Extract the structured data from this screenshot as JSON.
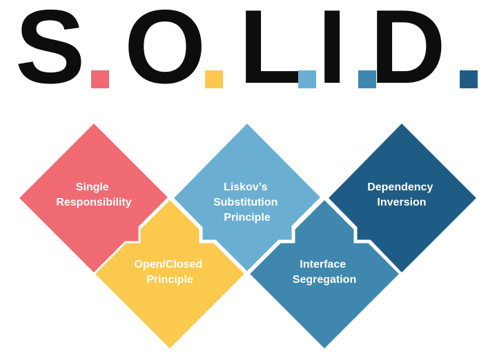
{
  "title": {
    "letters": [
      "S",
      "O",
      "L",
      "I",
      "D"
    ],
    "dot_colors": [
      "#f06a74",
      "#fcc94f",
      "#6aafd2",
      "#3f87ae",
      "#1e5c86"
    ]
  },
  "principles": [
    {
      "lines": [
        "Single",
        "Responsibility"
      ],
      "color": "#f06a74"
    },
    {
      "lines": [
        "Open/Closed",
        "Principle"
      ],
      "color": "#fcc94f"
    },
    {
      "lines": [
        "Liskov’s",
        "Substitution",
        "Principle"
      ],
      "color": "#6aafd2"
    },
    {
      "lines": [
        "Interface",
        "Segregation"
      ],
      "color": "#3f87ae"
    },
    {
      "lines": [
        "Dependency",
        "Inversion"
      ],
      "color": "#1e5c86"
    }
  ]
}
